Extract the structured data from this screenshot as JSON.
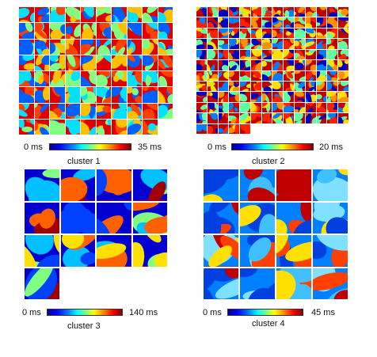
{
  "panels": [
    {
      "name": "cluster 1",
      "cbar_min": "0 ms",
      "cbar_max": "35 ms",
      "cols": 10,
      "count": 79,
      "palette": [
        "#e00000",
        "#ff4000",
        "#ffc000",
        "#80ff80",
        "#00e0ff",
        "#0060ff"
      ]
    },
    {
      "name": "cluster 2",
      "cbar_min": "0 ms",
      "cbar_max": "20 ms",
      "cols": 14,
      "count": 159,
      "palette": [
        "#c00000",
        "#ff2000",
        "#ff9000",
        "#ffe000",
        "#60ffa0",
        "#0080ff",
        "#0000c0"
      ]
    },
    {
      "name": "cluster 3",
      "cbar_min": "0 ms",
      "cbar_max": "140 ms",
      "cols": 4,
      "count": 13,
      "palette": [
        "#0000d0",
        "#0040ff",
        "#00c0ff",
        "#80ff80",
        "#ffe000",
        "#ff6000",
        "#a00000"
      ]
    },
    {
      "name": "cluster 4",
      "cbar_min": "0 ms",
      "cbar_max": "45 ms",
      "cols": 4,
      "count": 16,
      "palette": [
        "#0080ff",
        "#40c0ff",
        "#80e0ff",
        "#ffe000",
        "#ff4000",
        "#c00000",
        "#0040e0"
      ]
    }
  ]
}
